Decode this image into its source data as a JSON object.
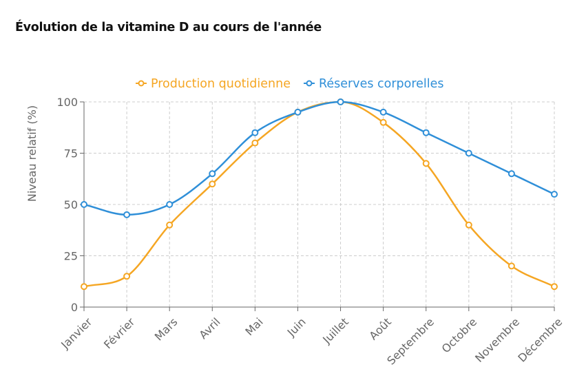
{
  "page": {
    "title": "Évolution de la vitamine D au cours de l'année"
  },
  "chart_data": {
    "type": "line",
    "title": "",
    "xlabel": "",
    "ylabel": "Niveau relatif (%)",
    "categories": [
      "Janvier",
      "Février",
      "Mars",
      "Avril",
      "Mai",
      "Juin",
      "Juillet",
      "Août",
      "Septembre",
      "Octobre",
      "Novembre",
      "Décembre"
    ],
    "ylim": [
      0,
      100
    ],
    "yticks": [
      0,
      25,
      50,
      75,
      100
    ],
    "grid": true,
    "legend_position": "top-center",
    "series": [
      {
        "name": "Production quotidienne",
        "color": "#f5a623",
        "values": [
          10,
          15,
          40,
          60,
          80,
          95,
          100,
          90,
          70,
          40,
          20,
          10
        ]
      },
      {
        "name": "Réserves corporelles",
        "color": "#2f8fd8",
        "values": [
          50,
          45,
          50,
          65,
          85,
          95,
          100,
          95,
          85,
          75,
          65,
          55
        ]
      }
    ]
  }
}
